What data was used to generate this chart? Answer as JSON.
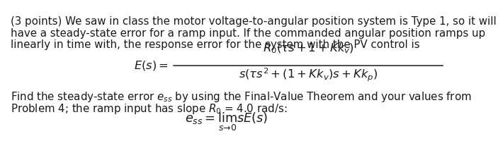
{
  "background_color": "#ffffff",
  "text_color": "#1a1a1a",
  "font_size_body": 10.8,
  "line1": "(3 points) We saw in class the motor voltage-to-angular position system is Type 1, so it will",
  "line2": "have a steady-state error for a ramp input. If the commanded angular position ramps up",
  "line3": "linearly in time with, the response error for the system with the PV control is",
  "line4": "Find the steady-state error $e_{ss}$ by using the Final-Value Theorem and your values from",
  "line5": "Problem 4; the ramp input has slope $R_0$ = 4.0 rad/s:"
}
